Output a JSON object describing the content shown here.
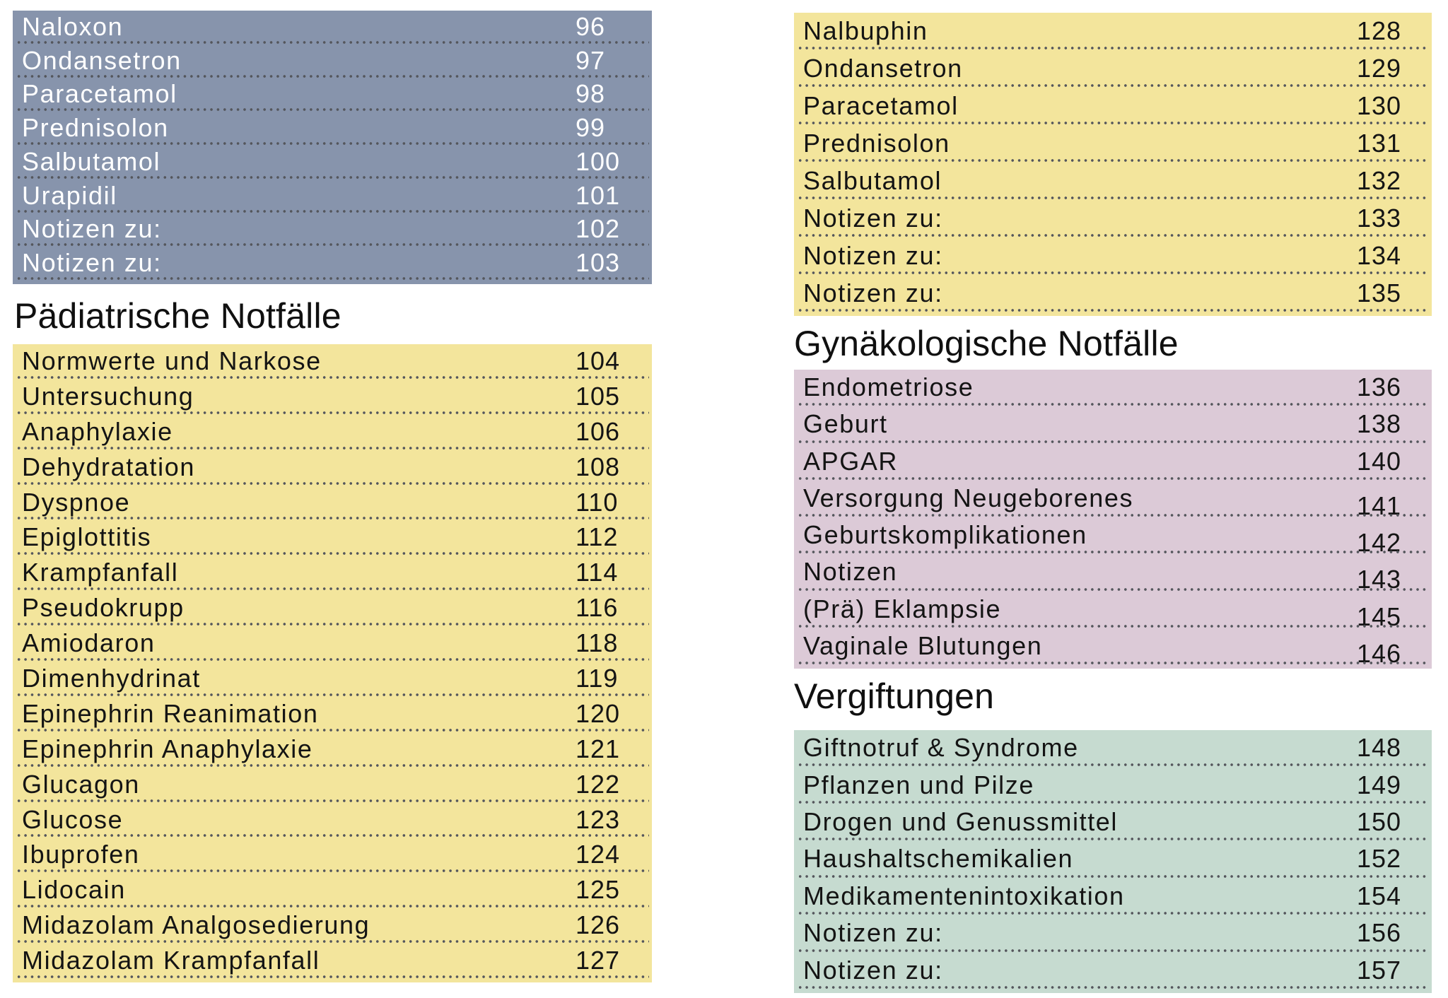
{
  "colors": {
    "page_background": "#ffffff",
    "blue_block": "#8794AC",
    "yellow_block": "#F3E59C",
    "pink_block": "#DCCAD7",
    "green_block": "#C6DBD0",
    "dot_leader": "#54565C",
    "text_dark": "#141414",
    "text_light": "#FFFFFF"
  },
  "headings": [
    {
      "id": "h-paed",
      "text": "Pädiatrische Notfälle"
    },
    {
      "id": "h-gyn",
      "text": "Gynäkologische Notfälle"
    },
    {
      "id": "h-verg",
      "text": "Vergiftungen"
    }
  ],
  "columns": [
    {
      "blocks": [
        {
          "kind": "list",
          "id": "left-blue",
          "color": "blue_block",
          "text": "text_light",
          "rows": [
            {
              "label": "Naloxon",
              "page": "96"
            },
            {
              "label": "Ondansetron",
              "page": "97"
            },
            {
              "label": "Paracetamol",
              "page": "98"
            },
            {
              "label": "Prednisolon",
              "page": "99"
            },
            {
              "label": "Salbutamol",
              "page": "100"
            },
            {
              "label": "Urapidil",
              "page": "101"
            },
            {
              "label": "Notizen zu:",
              "page": "102"
            },
            {
              "label": "Notizen zu:",
              "page": "103"
            }
          ]
        },
        {
          "kind": "heading",
          "ref": "h-paed"
        },
        {
          "kind": "list",
          "id": "left-yellow",
          "color": "yellow_block",
          "text": "text_dark",
          "rows": [
            {
              "label": "Normwerte und Narkose",
              "page": "104"
            },
            {
              "label": "Untersuchung",
              "page": "105"
            },
            {
              "label": "Anaphylaxie",
              "page": "106"
            },
            {
              "label": "Dehydratation",
              "page": "108"
            },
            {
              "label": "Dyspnoe",
              "page": "110"
            },
            {
              "label": "Epiglottitis",
              "page": "112"
            },
            {
              "label": "Krampfanfall",
              "page": "114"
            },
            {
              "label": "Pseudokrupp",
              "page": "116"
            },
            {
              "label": "Amiodaron",
              "page": "118"
            },
            {
              "label": "Dimenhydrinat",
              "page": "119"
            },
            {
              "label": "Epinephrin Reanimation",
              "page": "120"
            },
            {
              "label": "Epinephrin Anaphylaxie",
              "page": "121"
            },
            {
              "label": "Glucagon",
              "page": "122"
            },
            {
              "label": "Glucose",
              "page": "123"
            },
            {
              "label": "Ibuprofen",
              "page": "124"
            },
            {
              "label": "Lidocain",
              "page": "125"
            },
            {
              "label": "Midazolam Analgosedierung",
              "page": "126"
            },
            {
              "label": "Midazolam Krampfanfall",
              "page": "127"
            }
          ]
        }
      ]
    },
    {
      "blocks": [
        {
          "kind": "list",
          "id": "right-yellow",
          "color": "yellow_block",
          "text": "text_dark",
          "rows": [
            {
              "label": "Nalbuphin",
              "page": "128"
            },
            {
              "label": "Ondansetron",
              "page": "129"
            },
            {
              "label": "Paracetamol",
              "page": "130"
            },
            {
              "label": "Prednisolon",
              "page": "131"
            },
            {
              "label": "Salbutamol",
              "page": "132"
            },
            {
              "label": "Notizen zu:",
              "page": "133"
            },
            {
              "label": "Notizen zu:",
              "page": "134"
            },
            {
              "label": "Notizen zu:",
              "page": "135"
            }
          ]
        },
        {
          "kind": "heading",
          "ref": "h-gyn"
        },
        {
          "kind": "list",
          "id": "right-pink",
          "color": "pink_block",
          "text": "text_dark",
          "rows": [
            {
              "label": "Endometriose",
              "page": "136"
            },
            {
              "label": "Geburt",
              "page": "138"
            },
            {
              "label": "APGAR",
              "page": "140"
            },
            {
              "label": "Versorgung Neugeborenes",
              "page": "141",
              "num_low": true
            },
            {
              "label": "Geburtskomplikationen",
              "page": "142",
              "num_low": true
            },
            {
              "label": "Notizen",
              "page": "143",
              "num_low": true
            },
            {
              "label": "(Prä) Eklampsie",
              "page": "145",
              "num_low": true
            },
            {
              "label": "Vaginale Blutungen",
              "page": "146",
              "num_low": true
            }
          ]
        },
        {
          "kind": "heading",
          "ref": "h-verg"
        },
        {
          "kind": "list",
          "id": "right-green",
          "color": "green_block",
          "text": "text_dark",
          "rows": [
            {
              "label": "Giftnotruf & Syndrome",
              "page": "148"
            },
            {
              "label": "Pflanzen und Pilze",
              "page": "149"
            },
            {
              "label": "Drogen und Genussmittel",
              "page": "150"
            },
            {
              "label": "Haushaltschemikalien",
              "page": "152"
            },
            {
              "label": "Medikamentenintoxikation",
              "page": "154"
            },
            {
              "label": "Notizen zu:",
              "page": "156"
            },
            {
              "label": "Notizen zu:",
              "page": "157"
            }
          ]
        }
      ]
    }
  ]
}
